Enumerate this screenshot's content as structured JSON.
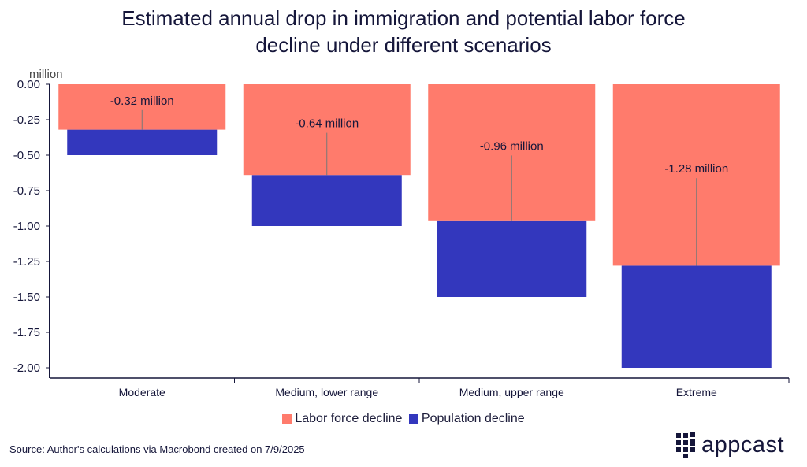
{
  "title_line1": "Estimated annual drop in immigration and potential labor force",
  "title_line2": "decline under different scenarios",
  "source": "Source: Author's calculations via Macrobond created on 7/9/2025",
  "logo": "appcast",
  "colors": {
    "labor": "#FF7B6C",
    "population": "#3337BD"
  },
  "chart_data": {
    "type": "bar",
    "title": "Estimated annual drop in immigration and potential labor force decline under different scenarios",
    "ylabel": "million",
    "ylim": [
      -2.0,
      0.0
    ],
    "yticks": [
      "0.00",
      "-0.25",
      "-0.50",
      "-0.75",
      "-1.00",
      "-1.25",
      "-1.50",
      "-1.75",
      "-2.00"
    ],
    "categories": [
      "Moderate",
      "Medium, lower range",
      "Medium, upper range",
      "Extreme"
    ],
    "series": [
      {
        "name": "Labor force decline",
        "values": [
          -0.32,
          -0.64,
          -0.96,
          -1.28
        ]
      },
      {
        "name": "Population decline",
        "values": [
          -0.5,
          -1.0,
          -1.5,
          -2.0
        ]
      }
    ],
    "data_labels": [
      "-0.32 million",
      "-0.64 million",
      "-0.96 million",
      "-1.28 million"
    ],
    "legend_position": "bottom"
  }
}
